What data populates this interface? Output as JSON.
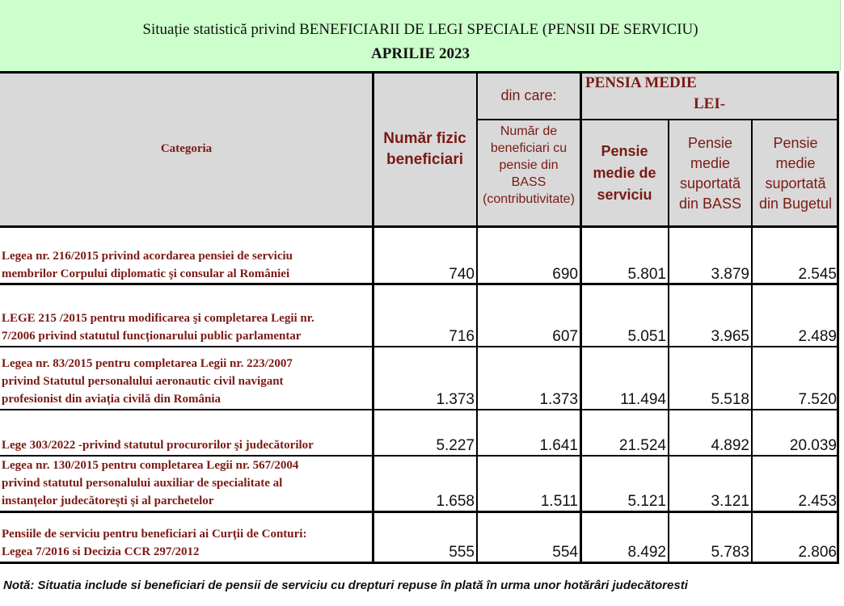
{
  "header": {
    "title": "Situație statistică privind BENEFICIARII DE LEGI SPECIALE (PENSII DE SERVICIU)",
    "subtitle": "APRILIE  2023"
  },
  "columns": {
    "categoria": "Categoria",
    "numar_fizic": "Număr fizic beneficiari",
    "din_care": "din care:",
    "numar_bass": "Număr de beneficiari cu pensie din BASS (contributivitate)",
    "pensia_medie": "PENSIA MEDIE",
    "lei": "LEI-",
    "pensie_serviciu": "Pensie medie de serviciu",
    "pensie_bass": "Pensie medie suportată din BASS",
    "pensie_buget": "Pensie medie suportată din Bugetul"
  },
  "rows": [
    {
      "category": [
        "Legea nr. 216/2015 privind acordarea pensiei de serviciu",
        "membrilor Corpului diplomatic şi consular al României"
      ],
      "numar": "740",
      "bass_count": "690",
      "serviciu": "5.801",
      "bass": "3.879",
      "buget": "2.545"
    },
    {
      "category": [
        "LEGE 215 /2015  pentru modificarea şi completarea Legii nr.",
        "7/2006 privind statutul funcționarului public parlamentar"
      ],
      "numar": "716",
      "bass_count": "607",
      "serviciu": "5.051",
      "bass": "3.965",
      "buget": "2.489"
    },
    {
      "category": [
        " Legea nr. 83/2015 pentru completarea Legii nr. 223/2007",
        "privind Statutul personalului aeronautic civil navigant",
        "profesionist din aviația civilă din România"
      ],
      "numar": "1.373",
      "bass_count": "1.373",
      "serviciu": "11.494",
      "bass": "5.518",
      "buget": "7.520"
    },
    {
      "category": [
        "Lege 303/2022 -privind statutul procurorilor şi judecătorilor"
      ],
      "numar": "5.227",
      "bass_count": "1.641",
      "serviciu": "21.524",
      "bass": "4.892",
      "buget": "20.039"
    },
    {
      "category": [
        "Legea nr. 130/2015 pentru completarea Legii nr. 567/2004",
        "privind statutul personalului auxiliar de specialitate al",
        "instanțelor judecătoreşti şi al parchetelor"
      ],
      "numar": "1.658",
      "bass_count": "1.511",
      "serviciu": "5.121",
      "bass": "3.121",
      "buget": "2.453"
    },
    {
      "category": [
        "Pensiile de serviciu pentru beneficiari ai Curții de Conturi:",
        "Legea 7/2016 si  Decizia CCR 297/2012"
      ],
      "numar": "555",
      "bass_count": "554",
      "serviciu": "8.492",
      "bass": "5.783",
      "buget": "2.806"
    }
  ],
  "note": "Notă: Situatia include si beneficiari de pensii de serviciu cu drepturi repuse în plată în urma unor hotărâri judecătoresti"
}
